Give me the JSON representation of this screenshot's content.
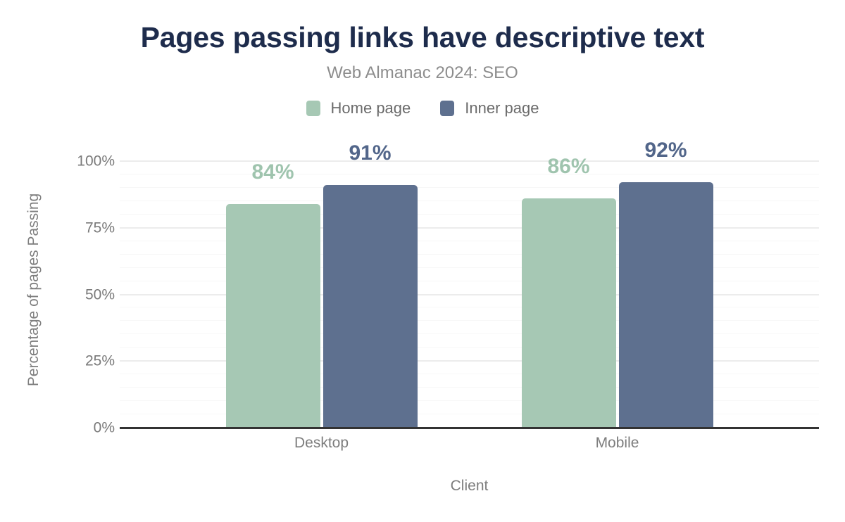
{
  "chart_data": {
    "type": "bar",
    "title": "Pages passing links have descriptive text",
    "subtitle": "Web Almanac 2024: SEO",
    "categories": [
      "Desktop",
      "Mobile"
    ],
    "series": [
      {
        "name": "Home page",
        "values": [
          84,
          86
        ],
        "color": "#a6c8b4",
        "label_color": "#9fc4ae"
      },
      {
        "name": "Inner page",
        "values": [
          91,
          92
        ],
        "color": "#5e708f",
        "label_color": "#52668a"
      }
    ],
    "value_suffix": "%",
    "xlabel": "Client",
    "ylabel": "Percentage of pages Passing",
    "ylim": [
      0,
      100
    ],
    "yticks": [
      0,
      25,
      50,
      75,
      100
    ],
    "ytick_suffix": "%",
    "grid": "horizontal; minor every 5%, major every 25%",
    "legend_position": "top"
  },
  "colors": {
    "title": "#1e2c4c",
    "subtitle": "#8d8d8d",
    "axis_line": "#333333",
    "tick_text": "#7a7a7a",
    "gridline_minor": "#f7f7f7",
    "gridline_major": "#ececec",
    "background": "#ffffff"
  }
}
